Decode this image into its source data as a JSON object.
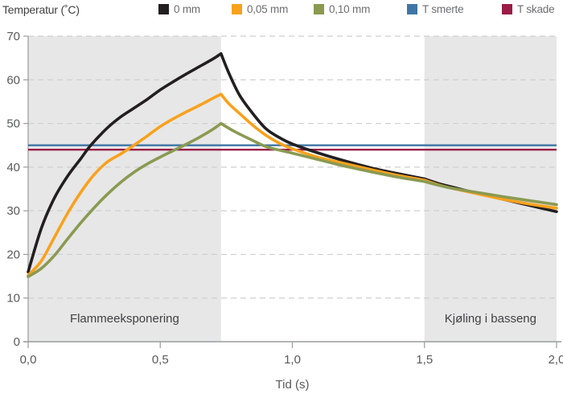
{
  "chart_data": {
    "type": "line",
    "title": "Temperatur (˚C)",
    "xlabel": "Tid (s)",
    "ylabel": "Temperatur (˚C)",
    "xlim": [
      0,
      2
    ],
    "ylim": [
      0,
      70
    ],
    "x_ticks": [
      0,
      0.5,
      1.0,
      1.5,
      2.0
    ],
    "x_tick_labels": [
      "0,0",
      "0,5",
      "1,0",
      "1,5",
      "2,0"
    ],
    "y_ticks": [
      0,
      10,
      20,
      30,
      40,
      50,
      60,
      70
    ],
    "y_tick_labels": [
      "0",
      "10",
      "20",
      "30",
      "40",
      "50",
      "60",
      "70"
    ],
    "grid": "horizontal-dashed",
    "legend_position": "top",
    "regions": [
      {
        "label": "Flammeeksponering",
        "x0": 0,
        "x1": 0.73,
        "color": "#e7e7e8"
      },
      {
        "label": "Kjøling i basseng",
        "x0": 1.5,
        "x1": 2.0,
        "color": "#e7e7e8"
      }
    ],
    "thresholds": [
      {
        "name": "T smerte",
        "value": 45,
        "color": "#4076a5"
      },
      {
        "name": "T skade",
        "value": 44,
        "color": "#9b1c47"
      }
    ],
    "corner_xs": [
      0.73,
      1.5
    ],
    "series": [
      {
        "name": "0 mm",
        "color": "#231f20",
        "points": [
          [
            0,
            16
          ],
          [
            0.05,
            26
          ],
          [
            0.1,
            33
          ],
          [
            0.15,
            38
          ],
          [
            0.2,
            42
          ],
          [
            0.237,
            45
          ],
          [
            0.3,
            49
          ],
          [
            0.35,
            51.5
          ],
          [
            0.4,
            53.5
          ],
          [
            0.45,
            55.5
          ],
          [
            0.5,
            57.7
          ],
          [
            0.55,
            59.6
          ],
          [
            0.6,
            61.4
          ],
          [
            0.65,
            63.1
          ],
          [
            0.7,
            64.8
          ],
          [
            0.73,
            66
          ],
          [
            0.76,
            61.5
          ],
          [
            0.8,
            56.5
          ],
          [
            0.85,
            52.3
          ],
          [
            0.9,
            48.8
          ],
          [
            0.95,
            46.8
          ],
          [
            1.0,
            45.3
          ],
          [
            1.1,
            43.2
          ],
          [
            1.2,
            41.4
          ],
          [
            1.3,
            39.8
          ],
          [
            1.4,
            38.5
          ],
          [
            1.5,
            37.3
          ],
          [
            1.55,
            36.3
          ],
          [
            1.6,
            35.5
          ],
          [
            1.7,
            34.0
          ],
          [
            1.8,
            32.6
          ],
          [
            1.9,
            31.2
          ],
          [
            2.0,
            29.8
          ]
        ]
      },
      {
        "name": "0,05 mm",
        "color": "#f9a11c",
        "points": [
          [
            0,
            15.2
          ],
          [
            0.05,
            18.5
          ],
          [
            0.1,
            24
          ],
          [
            0.15,
            29.5
          ],
          [
            0.2,
            34.3
          ],
          [
            0.25,
            38.3
          ],
          [
            0.3,
            41.2
          ],
          [
            0.35,
            43.0
          ],
          [
            0.4,
            45.0
          ],
          [
            0.45,
            47.1
          ],
          [
            0.5,
            49.3
          ],
          [
            0.55,
            51.1
          ],
          [
            0.6,
            52.7
          ],
          [
            0.65,
            54.2
          ],
          [
            0.7,
            55.8
          ],
          [
            0.73,
            56.7
          ],
          [
            0.76,
            54.5
          ],
          [
            0.8,
            52.3
          ],
          [
            0.85,
            49.6
          ],
          [
            0.9,
            47.3
          ],
          [
            0.95,
            45.5
          ],
          [
            1.0,
            44.2
          ],
          [
            1.1,
            42.2
          ],
          [
            1.2,
            40.8
          ],
          [
            1.3,
            39.4
          ],
          [
            1.4,
            38.1
          ],
          [
            1.5,
            37.0
          ],
          [
            1.55,
            36.0
          ],
          [
            1.6,
            35.2
          ],
          [
            1.7,
            33.9
          ],
          [
            1.8,
            32.6
          ],
          [
            1.9,
            31.5
          ],
          [
            2.0,
            30.6
          ]
        ]
      },
      {
        "name": "0,10 mm",
        "color": "#8a9a51",
        "points": [
          [
            0,
            14.9
          ],
          [
            0.05,
            16.8
          ],
          [
            0.1,
            19.8
          ],
          [
            0.15,
            23.6
          ],
          [
            0.2,
            27.3
          ],
          [
            0.25,
            30.7
          ],
          [
            0.3,
            33.8
          ],
          [
            0.35,
            36.5
          ],
          [
            0.4,
            38.8
          ],
          [
            0.45,
            40.7
          ],
          [
            0.5,
            42.3
          ],
          [
            0.55,
            43.8
          ],
          [
            0.6,
            45.3
          ],
          [
            0.65,
            46.9
          ],
          [
            0.7,
            48.7
          ],
          [
            0.73,
            50
          ],
          [
            0.78,
            48.2
          ],
          [
            0.85,
            46.1
          ],
          [
            0.9,
            44.7
          ],
          [
            0.95,
            43.9
          ],
          [
            1.0,
            43.2
          ],
          [
            1.1,
            41.7
          ],
          [
            1.2,
            40.2
          ],
          [
            1.3,
            38.9
          ],
          [
            1.4,
            37.7
          ],
          [
            1.5,
            36.7
          ],
          [
            1.55,
            35.9
          ],
          [
            1.6,
            35.2
          ],
          [
            1.7,
            34.2
          ],
          [
            1.8,
            33.2
          ],
          [
            1.9,
            32.3
          ],
          [
            2.0,
            31.4
          ]
        ]
      }
    ],
    "legend": [
      {
        "label": "0 mm",
        "color": "#231f20"
      },
      {
        "label": "0,05 mm",
        "color": "#f9a11c"
      },
      {
        "label": "0,10 mm",
        "color": "#8a9a51"
      },
      {
        "label": "T smerte",
        "color": "#4076a5"
      },
      {
        "label": "T skade",
        "color": "#9b1c47"
      }
    ],
    "colors": {
      "background": "#ffffff",
      "region_fill": "#e7e7e8",
      "gridline": "#cfcfd0",
      "axis": "#9a9b9c",
      "tick_text": "#58595b",
      "legend_text": "#6d6e71"
    }
  }
}
